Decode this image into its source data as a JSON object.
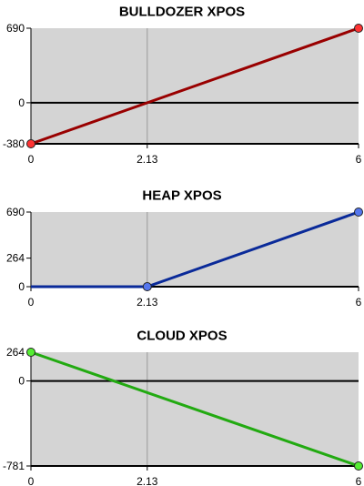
{
  "chart_data": [
    {
      "type": "line",
      "title": "BULLDOZER XPOS",
      "x": [
        0,
        6
      ],
      "xlim": [
        0,
        6
      ],
      "ylim": [
        -380,
        690
      ],
      "xticks": [
        {
          "value": 0,
          "label": "0"
        },
        {
          "value": 2.13,
          "label": "2.13"
        },
        {
          "value": 6,
          "label": "6"
        }
      ],
      "yticks": [
        {
          "value": 690,
          "label": "690"
        },
        {
          "value": 0,
          "label": "0"
        },
        {
          "value": -380,
          "label": "-380"
        }
      ],
      "series": [
        {
          "points": [
            [
              0,
              -380
            ],
            [
              6,
              690
            ]
          ],
          "color": "#990000",
          "marker_color": "#ff3333"
        }
      ],
      "grid": true,
      "background": "#d4d4d4"
    },
    {
      "type": "line",
      "title": "HEAP XPOS",
      "xlim": [
        0,
        6
      ],
      "ylim": [
        0,
        690
      ],
      "xticks": [
        {
          "value": 0,
          "label": "0"
        },
        {
          "value": 2.13,
          "label": "2.13"
        },
        {
          "value": 6,
          "label": "6"
        }
      ],
      "yticks": [
        {
          "value": 690,
          "label": "690"
        },
        {
          "value": 264,
          "label": "264"
        },
        {
          "value": 0,
          "label": "0"
        }
      ],
      "series": [
        {
          "points": [
            [
              0,
              0
            ],
            [
              2.13,
              0
            ],
            [
              6,
              690
            ]
          ],
          "color": "#0a2a99",
          "marker_color": "#5577ee",
          "markers_at": [
            1,
            2
          ]
        }
      ],
      "grid": true,
      "background": "#d4d4d4"
    },
    {
      "type": "line",
      "title": "CLOUD XPOS",
      "xlim": [
        0,
        6
      ],
      "ylim": [
        -781,
        264
      ],
      "xticks": [
        {
          "value": 0,
          "label": "0"
        },
        {
          "value": 2.13,
          "label": "2.13"
        },
        {
          "value": 6,
          "label": "6"
        }
      ],
      "yticks": [
        {
          "value": 264,
          "label": "264"
        },
        {
          "value": 0,
          "label": "0"
        },
        {
          "value": -781,
          "label": "-781"
        }
      ],
      "series": [
        {
          "points": [
            [
              0,
              264
            ],
            [
              6,
              -781
            ]
          ],
          "color": "#22aa11",
          "marker_color": "#55ee33"
        }
      ],
      "grid": true,
      "background": "#d4d4d4"
    }
  ]
}
